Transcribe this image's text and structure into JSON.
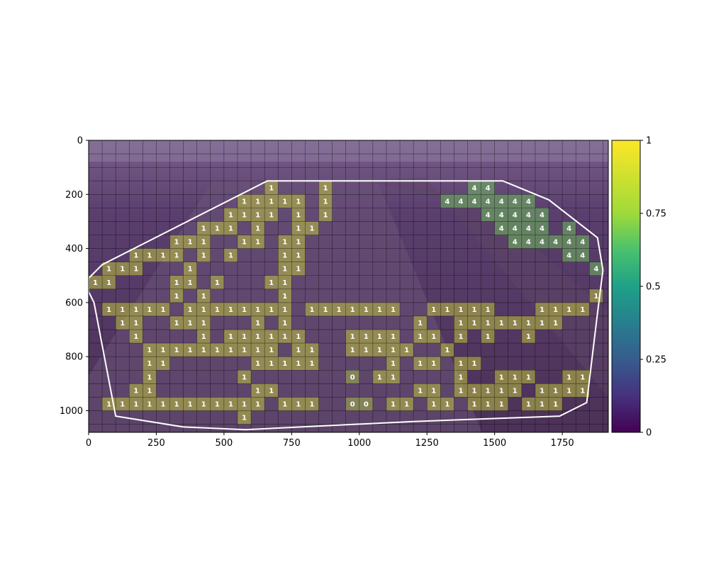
{
  "chart_data": {
    "type": "heatmap",
    "title": "",
    "xlabel": "",
    "ylabel": "",
    "x_ticks": [
      0,
      250,
      500,
      750,
      1000,
      1250,
      1500,
      1750
    ],
    "y_ticks": [
      0,
      200,
      400,
      600,
      800,
      1000
    ],
    "xlim": [
      0,
      1920
    ],
    "ylim": [
      1080,
      0
    ],
    "grid_cell_size": 50,
    "overlay_alpha": 0.5,
    "colorbar": {
      "min": 0,
      "max": 1,
      "ticks": [
        "0",
        "0.25",
        "0.5",
        "0.75",
        "1"
      ],
      "colormap": "viridis"
    },
    "roi_polygon": [
      [
        0,
        510
      ],
      [
        50,
        460
      ],
      [
        660,
        150
      ],
      [
        1530,
        150
      ],
      [
        1700,
        220
      ],
      [
        1880,
        360
      ],
      [
        1900,
        480
      ],
      [
        1880,
        640
      ],
      [
        1840,
        970
      ],
      [
        1740,
        1020
      ],
      [
        1200,
        1040
      ],
      [
        580,
        1070
      ],
      [
        350,
        1060
      ],
      [
        100,
        1020
      ],
      [
        20,
        600
      ],
      [
        0,
        560
      ]
    ],
    "cells": [
      {
        "c": 13,
        "r": 3,
        "v": "1"
      },
      {
        "c": 17,
        "r": 3,
        "v": "1"
      },
      {
        "c": 28,
        "r": 3,
        "v": "4"
      },
      {
        "c": 29,
        "r": 3,
        "v": "4"
      },
      {
        "c": 11,
        "r": 4,
        "v": "1"
      },
      {
        "c": 12,
        "r": 4,
        "v": "1"
      },
      {
        "c": 13,
        "r": 4,
        "v": "1"
      },
      {
        "c": 14,
        "r": 4,
        "v": "1"
      },
      {
        "c": 15,
        "r": 4,
        "v": "1"
      },
      {
        "c": 17,
        "r": 4,
        "v": "1"
      },
      {
        "c": 26,
        "r": 4,
        "v": "4"
      },
      {
        "c": 27,
        "r": 4,
        "v": "4"
      },
      {
        "c": 28,
        "r": 4,
        "v": "4"
      },
      {
        "c": 29,
        "r": 4,
        "v": "4"
      },
      {
        "c": 30,
        "r": 4,
        "v": "4"
      },
      {
        "c": 31,
        "r": 4,
        "v": "4"
      },
      {
        "c": 32,
        "r": 4,
        "v": "4"
      },
      {
        "c": 10,
        "r": 5,
        "v": "1"
      },
      {
        "c": 11,
        "r": 5,
        "v": "1"
      },
      {
        "c": 12,
        "r": 5,
        "v": "1"
      },
      {
        "c": 13,
        "r": 5,
        "v": "1"
      },
      {
        "c": 15,
        "r": 5,
        "v": "1"
      },
      {
        "c": 17,
        "r": 5,
        "v": "1"
      },
      {
        "c": 29,
        "r": 5,
        "v": "4"
      },
      {
        "c": 30,
        "r": 5,
        "v": "4"
      },
      {
        "c": 31,
        "r": 5,
        "v": "4"
      },
      {
        "c": 32,
        "r": 5,
        "v": "4"
      },
      {
        "c": 33,
        "r": 5,
        "v": "4"
      },
      {
        "c": 8,
        "r": 6,
        "v": "1"
      },
      {
        "c": 9,
        "r": 6,
        "v": "1"
      },
      {
        "c": 10,
        "r": 6,
        "v": "1"
      },
      {
        "c": 12,
        "r": 6,
        "v": "1"
      },
      {
        "c": 15,
        "r": 6,
        "v": "1"
      },
      {
        "c": 16,
        "r": 6,
        "v": "1"
      },
      {
        "c": 30,
        "r": 6,
        "v": "4"
      },
      {
        "c": 31,
        "r": 6,
        "v": "4"
      },
      {
        "c": 32,
        "r": 6,
        "v": "4"
      },
      {
        "c": 33,
        "r": 6,
        "v": "4"
      },
      {
        "c": 35,
        "r": 6,
        "v": "4"
      },
      {
        "c": 6,
        "r": 7,
        "v": "1"
      },
      {
        "c": 7,
        "r": 7,
        "v": "1"
      },
      {
        "c": 8,
        "r": 7,
        "v": "1"
      },
      {
        "c": 11,
        "r": 7,
        "v": "1"
      },
      {
        "c": 12,
        "r": 7,
        "v": "1"
      },
      {
        "c": 14,
        "r": 7,
        "v": "1"
      },
      {
        "c": 15,
        "r": 7,
        "v": "1"
      },
      {
        "c": 31,
        "r": 7,
        "v": "4"
      },
      {
        "c": 32,
        "r": 7,
        "v": "4"
      },
      {
        "c": 33,
        "r": 7,
        "v": "4"
      },
      {
        "c": 34,
        "r": 7,
        "v": "4"
      },
      {
        "c": 35,
        "r": 7,
        "v": "4"
      },
      {
        "c": 36,
        "r": 7,
        "v": "4"
      },
      {
        "c": 3,
        "r": 8,
        "v": "1"
      },
      {
        "c": 4,
        "r": 8,
        "v": "1"
      },
      {
        "c": 5,
        "r": 8,
        "v": "1"
      },
      {
        "c": 6,
        "r": 8,
        "v": "1"
      },
      {
        "c": 8,
        "r": 8,
        "v": "1"
      },
      {
        "c": 10,
        "r": 8,
        "v": "1"
      },
      {
        "c": 14,
        "r": 8,
        "v": "1"
      },
      {
        "c": 15,
        "r": 8,
        "v": "1"
      },
      {
        "c": 35,
        "r": 8,
        "v": "4"
      },
      {
        "c": 36,
        "r": 8,
        "v": "4"
      },
      {
        "c": 1,
        "r": 9,
        "v": "1"
      },
      {
        "c": 2,
        "r": 9,
        "v": "1"
      },
      {
        "c": 3,
        "r": 9,
        "v": "1"
      },
      {
        "c": 7,
        "r": 9,
        "v": "1"
      },
      {
        "c": 14,
        "r": 9,
        "v": "1"
      },
      {
        "c": 15,
        "r": 9,
        "v": "1"
      },
      {
        "c": 37,
        "r": 9,
        "v": "4"
      },
      {
        "c": 0,
        "r": 10,
        "v": "1"
      },
      {
        "c": 1,
        "r": 10,
        "v": "1"
      },
      {
        "c": 6,
        "r": 10,
        "v": "1"
      },
      {
        "c": 7,
        "r": 10,
        "v": "1"
      },
      {
        "c": 9,
        "r": 10,
        "v": "1"
      },
      {
        "c": 13,
        "r": 10,
        "v": "1"
      },
      {
        "c": 14,
        "r": 10,
        "v": "1"
      },
      {
        "c": 6,
        "r": 11,
        "v": "1"
      },
      {
        "c": 8,
        "r": 11,
        "v": "1"
      },
      {
        "c": 14,
        "r": 11,
        "v": "1"
      },
      {
        "c": 37,
        "r": 11,
        "v": "1"
      },
      {
        "c": 1,
        "r": 12,
        "v": "1"
      },
      {
        "c": 2,
        "r": 12,
        "v": "1"
      },
      {
        "c": 3,
        "r": 12,
        "v": "1"
      },
      {
        "c": 4,
        "r": 12,
        "v": "1"
      },
      {
        "c": 5,
        "r": 12,
        "v": "1"
      },
      {
        "c": 7,
        "r": 12,
        "v": "1"
      },
      {
        "c": 8,
        "r": 12,
        "v": "1"
      },
      {
        "c": 9,
        "r": 12,
        "v": "1"
      },
      {
        "c": 10,
        "r": 12,
        "v": "1"
      },
      {
        "c": 11,
        "r": 12,
        "v": "1"
      },
      {
        "c": 12,
        "r": 12,
        "v": "1"
      },
      {
        "c": 13,
        "r": 12,
        "v": "1"
      },
      {
        "c": 14,
        "r": 12,
        "v": "1"
      },
      {
        "c": 16,
        "r": 12,
        "v": "1"
      },
      {
        "c": 17,
        "r": 12,
        "v": "1"
      },
      {
        "c": 18,
        "r": 12,
        "v": "1"
      },
      {
        "c": 19,
        "r": 12,
        "v": "1"
      },
      {
        "c": 20,
        "r": 12,
        "v": "1"
      },
      {
        "c": 21,
        "r": 12,
        "v": "1"
      },
      {
        "c": 22,
        "r": 12,
        "v": "1"
      },
      {
        "c": 25,
        "r": 12,
        "v": "1"
      },
      {
        "c": 26,
        "r": 12,
        "v": "1"
      },
      {
        "c": 27,
        "r": 12,
        "v": "1"
      },
      {
        "c": 28,
        "r": 12,
        "v": "1"
      },
      {
        "c": 29,
        "r": 12,
        "v": "1"
      },
      {
        "c": 33,
        "r": 12,
        "v": "1"
      },
      {
        "c": 34,
        "r": 12,
        "v": "1"
      },
      {
        "c": 35,
        "r": 12,
        "v": "1"
      },
      {
        "c": 36,
        "r": 12,
        "v": "1"
      },
      {
        "c": 2,
        "r": 13,
        "v": "1"
      },
      {
        "c": 3,
        "r": 13,
        "v": "1"
      },
      {
        "c": 6,
        "r": 13,
        "v": "1"
      },
      {
        "c": 7,
        "r": 13,
        "v": "1"
      },
      {
        "c": 8,
        "r": 13,
        "v": "1"
      },
      {
        "c": 12,
        "r": 13,
        "v": "1"
      },
      {
        "c": 14,
        "r": 13,
        "v": "1"
      },
      {
        "c": 24,
        "r": 13,
        "v": "1"
      },
      {
        "c": 27,
        "r": 13,
        "v": "1"
      },
      {
        "c": 28,
        "r": 13,
        "v": "1"
      },
      {
        "c": 29,
        "r": 13,
        "v": "1"
      },
      {
        "c": 30,
        "r": 13,
        "v": "1"
      },
      {
        "c": 31,
        "r": 13,
        "v": "1"
      },
      {
        "c": 32,
        "r": 13,
        "v": "1"
      },
      {
        "c": 33,
        "r": 13,
        "v": "1"
      },
      {
        "c": 34,
        "r": 13,
        "v": "1"
      },
      {
        "c": 3,
        "r": 14,
        "v": "1"
      },
      {
        "c": 8,
        "r": 14,
        "v": "1"
      },
      {
        "c": 10,
        "r": 14,
        "v": "1"
      },
      {
        "c": 11,
        "r": 14,
        "v": "1"
      },
      {
        "c": 12,
        "r": 14,
        "v": "1"
      },
      {
        "c": 13,
        "r": 14,
        "v": "1"
      },
      {
        "c": 14,
        "r": 14,
        "v": "1"
      },
      {
        "c": 15,
        "r": 14,
        "v": "1"
      },
      {
        "c": 19,
        "r": 14,
        "v": "1"
      },
      {
        "c": 20,
        "r": 14,
        "v": "1"
      },
      {
        "c": 21,
        "r": 14,
        "v": "1"
      },
      {
        "c": 22,
        "r": 14,
        "v": "1"
      },
      {
        "c": 24,
        "r": 14,
        "v": "1"
      },
      {
        "c": 25,
        "r": 14,
        "v": "1"
      },
      {
        "c": 27,
        "r": 14,
        "v": "1"
      },
      {
        "c": 29,
        "r": 14,
        "v": "1"
      },
      {
        "c": 32,
        "r": 14,
        "v": "1"
      },
      {
        "c": 4,
        "r": 15,
        "v": "1"
      },
      {
        "c": 5,
        "r": 15,
        "v": "1"
      },
      {
        "c": 6,
        "r": 15,
        "v": "1"
      },
      {
        "c": 7,
        "r": 15,
        "v": "1"
      },
      {
        "c": 8,
        "r": 15,
        "v": "1"
      },
      {
        "c": 9,
        "r": 15,
        "v": "1"
      },
      {
        "c": 10,
        "r": 15,
        "v": "1"
      },
      {
        "c": 11,
        "r": 15,
        "v": "1"
      },
      {
        "c": 12,
        "r": 15,
        "v": "1"
      },
      {
        "c": 13,
        "r": 15,
        "v": "1"
      },
      {
        "c": 15,
        "r": 15,
        "v": "1"
      },
      {
        "c": 16,
        "r": 15,
        "v": "1"
      },
      {
        "c": 19,
        "r": 15,
        "v": "1"
      },
      {
        "c": 20,
        "r": 15,
        "v": "1"
      },
      {
        "c": 21,
        "r": 15,
        "v": "1"
      },
      {
        "c": 22,
        "r": 15,
        "v": "1"
      },
      {
        "c": 23,
        "r": 15,
        "v": "1"
      },
      {
        "c": 26,
        "r": 15,
        "v": "1"
      },
      {
        "c": 4,
        "r": 16,
        "v": "1"
      },
      {
        "c": 5,
        "r": 16,
        "v": "1"
      },
      {
        "c": 12,
        "r": 16,
        "v": "1"
      },
      {
        "c": 13,
        "r": 16,
        "v": "1"
      },
      {
        "c": 14,
        "r": 16,
        "v": "1"
      },
      {
        "c": 15,
        "r": 16,
        "v": "1"
      },
      {
        "c": 16,
        "r": 16,
        "v": "1"
      },
      {
        "c": 22,
        "r": 16,
        "v": "1"
      },
      {
        "c": 24,
        "r": 16,
        "v": "1"
      },
      {
        "c": 25,
        "r": 16,
        "v": "1"
      },
      {
        "c": 27,
        "r": 16,
        "v": "1"
      },
      {
        "c": 28,
        "r": 16,
        "v": "1"
      },
      {
        "c": 4,
        "r": 17,
        "v": "1"
      },
      {
        "c": 11,
        "r": 17,
        "v": "1"
      },
      {
        "c": 19,
        "r": 17,
        "v": "0"
      },
      {
        "c": 21,
        "r": 17,
        "v": "1"
      },
      {
        "c": 22,
        "r": 17,
        "v": "1"
      },
      {
        "c": 27,
        "r": 17,
        "v": "1"
      },
      {
        "c": 30,
        "r": 17,
        "v": "1"
      },
      {
        "c": 31,
        "r": 17,
        "v": "1"
      },
      {
        "c": 32,
        "r": 17,
        "v": "1"
      },
      {
        "c": 35,
        "r": 17,
        "v": "1"
      },
      {
        "c": 36,
        "r": 17,
        "v": "1"
      },
      {
        "c": 3,
        "r": 18,
        "v": "1"
      },
      {
        "c": 4,
        "r": 18,
        "v": "1"
      },
      {
        "c": 12,
        "r": 18,
        "v": "1"
      },
      {
        "c": 13,
        "r": 18,
        "v": "1"
      },
      {
        "c": 24,
        "r": 18,
        "v": "1"
      },
      {
        "c": 25,
        "r": 18,
        "v": "1"
      },
      {
        "c": 27,
        "r": 18,
        "v": "1"
      },
      {
        "c": 28,
        "r": 18,
        "v": "1"
      },
      {
        "c": 29,
        "r": 18,
        "v": "1"
      },
      {
        "c": 30,
        "r": 18,
        "v": "1"
      },
      {
        "c": 31,
        "r": 18,
        "v": "1"
      },
      {
        "c": 33,
        "r": 18,
        "v": "1"
      },
      {
        "c": 34,
        "r": 18,
        "v": "1"
      },
      {
        "c": 35,
        "r": 18,
        "v": "1"
      },
      {
        "c": 36,
        "r": 18,
        "v": "1"
      },
      {
        "c": 1,
        "r": 19,
        "v": "1"
      },
      {
        "c": 2,
        "r": 19,
        "v": "1"
      },
      {
        "c": 3,
        "r": 19,
        "v": "1"
      },
      {
        "c": 4,
        "r": 19,
        "v": "1"
      },
      {
        "c": 5,
        "r": 19,
        "v": "1"
      },
      {
        "c": 6,
        "r": 19,
        "v": "1"
      },
      {
        "c": 7,
        "r": 19,
        "v": "1"
      },
      {
        "c": 8,
        "r": 19,
        "v": "1"
      },
      {
        "c": 9,
        "r": 19,
        "v": "1"
      },
      {
        "c": 10,
        "r": 19,
        "v": "1"
      },
      {
        "c": 11,
        "r": 19,
        "v": "1"
      },
      {
        "c": 12,
        "r": 19,
        "v": "1"
      },
      {
        "c": 14,
        "r": 19,
        "v": "1"
      },
      {
        "c": 15,
        "r": 19,
        "v": "1"
      },
      {
        "c": 16,
        "r": 19,
        "v": "1"
      },
      {
        "c": 19,
        "r": 19,
        "v": "0"
      },
      {
        "c": 20,
        "r": 19,
        "v": "0"
      },
      {
        "c": 22,
        "r": 19,
        "v": "1"
      },
      {
        "c": 23,
        "r": 19,
        "v": "1"
      },
      {
        "c": 25,
        "r": 19,
        "v": "1"
      },
      {
        "c": 26,
        "r": 19,
        "v": "1"
      },
      {
        "c": 28,
        "r": 19,
        "v": "1"
      },
      {
        "c": 29,
        "r": 19,
        "v": "1"
      },
      {
        "c": 30,
        "r": 19,
        "v": "1"
      },
      {
        "c": 32,
        "r": 19,
        "v": "1"
      },
      {
        "c": 33,
        "r": 19,
        "v": "1"
      },
      {
        "c": 34,
        "r": 19,
        "v": "1"
      },
      {
        "c": 11,
        "r": 20,
        "v": "1"
      }
    ]
  }
}
